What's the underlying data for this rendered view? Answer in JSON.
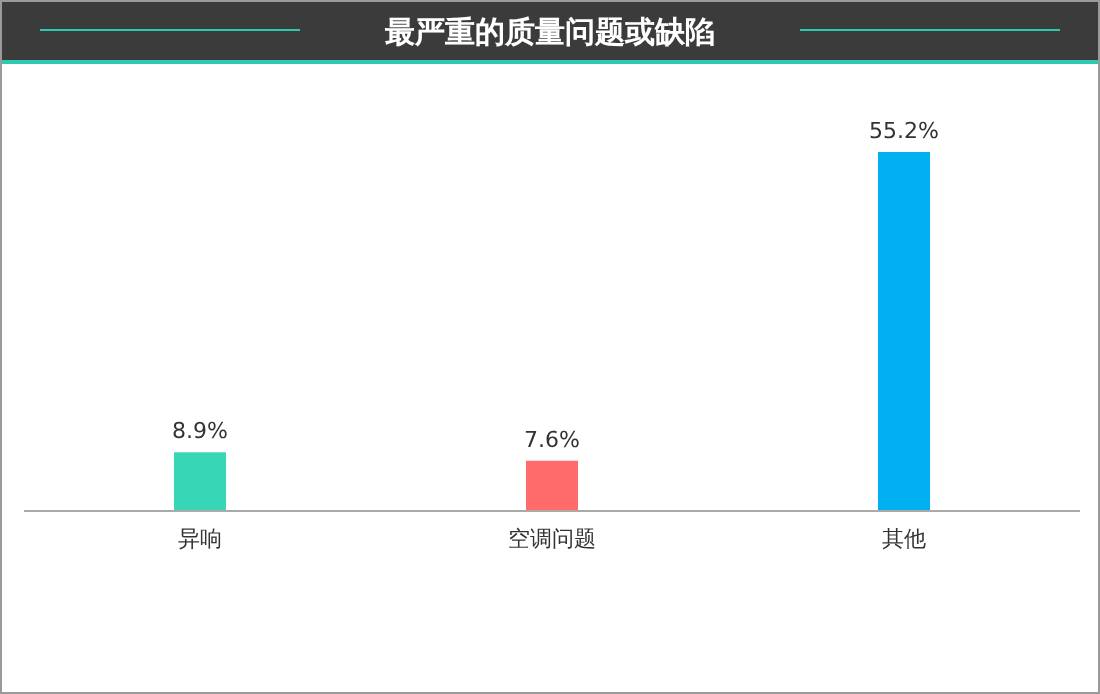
{
  "chart_data": {
    "type": "bar",
    "title": "最严重的质量问题或缺陷",
    "categories": [
      "异响",
      "空调问题",
      "其他"
    ],
    "values": [
      8.9,
      7.6,
      55.2
    ],
    "colors": [
      "#36d6b6",
      "#ff6b6b",
      "#00b0f0"
    ],
    "value_labels": [
      "8.9%",
      "7.6%",
      "55.2%"
    ]
  }
}
